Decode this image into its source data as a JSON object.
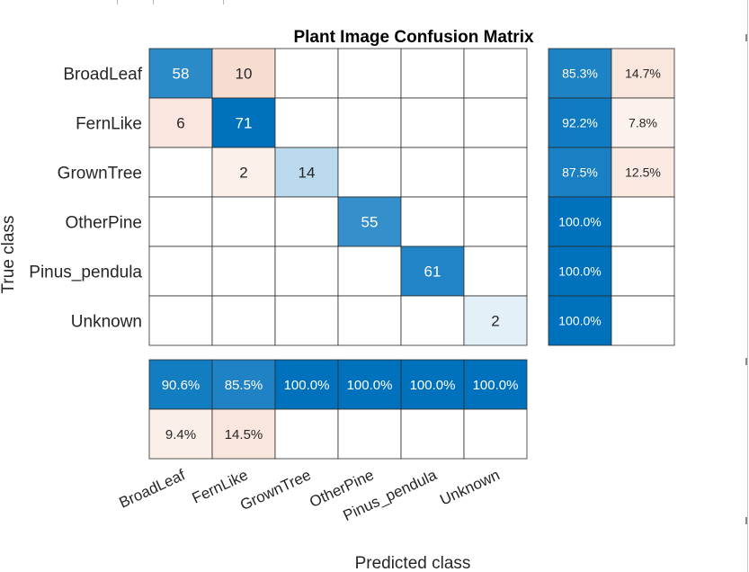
{
  "chart_data": {
    "type": "heatmap",
    "title": "Plant Image Confusion Matrix",
    "xlabel": "Predicted class",
    "ylabel": "True class",
    "classes": [
      "BroadLeaf",
      "FernLike",
      "GrownTree",
      "OtherPine",
      "Pinus_pendula",
      "Unknown"
    ],
    "matrix": [
      [
        58,
        10,
        0,
        0,
        0,
        0
      ],
      [
        6,
        71,
        0,
        0,
        0,
        0
      ],
      [
        0,
        2,
        14,
        0,
        0,
        0
      ],
      [
        0,
        0,
        0,
        55,
        0,
        0
      ],
      [
        0,
        0,
        0,
        0,
        61,
        0
      ],
      [
        0,
        0,
        0,
        0,
        0,
        2
      ]
    ],
    "row_summary": {
      "correct": [
        "85.3%",
        "92.2%",
        "87.5%",
        "100.0%",
        "100.0%",
        "100.0%"
      ],
      "incorrect": [
        "14.7%",
        "7.8%",
        "12.5%",
        "",
        "",
        ""
      ]
    },
    "column_summary": {
      "correct": [
        "90.6%",
        "85.5%",
        "100.0%",
        "100.0%",
        "100.0%",
        "100.0%"
      ],
      "incorrect": [
        "9.4%",
        "14.5%",
        "",
        "",
        "",
        ""
      ]
    },
    "colors": {
      "correct_strong": "#0072bd",
      "correct_light": "#ebf3fa",
      "incorrect_strong": "#d95319",
      "grid": "#2b2b2b",
      "text_dark": "#262626"
    }
  }
}
